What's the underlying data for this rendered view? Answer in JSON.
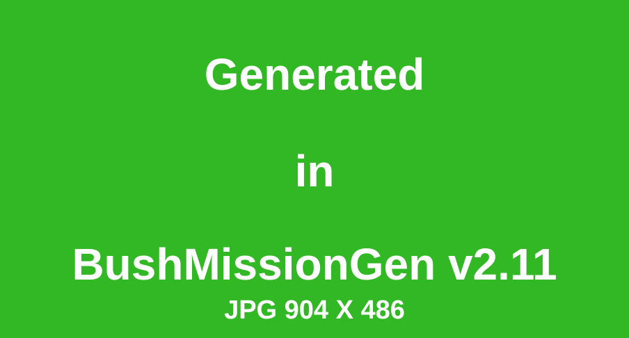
{
  "background_color": "#31b824",
  "text_color": "#ffffff",
  "lines": [
    "Generated",
    "in",
    "BushMissionGen v2.11",
    "JPG 904 X 486"
  ]
}
